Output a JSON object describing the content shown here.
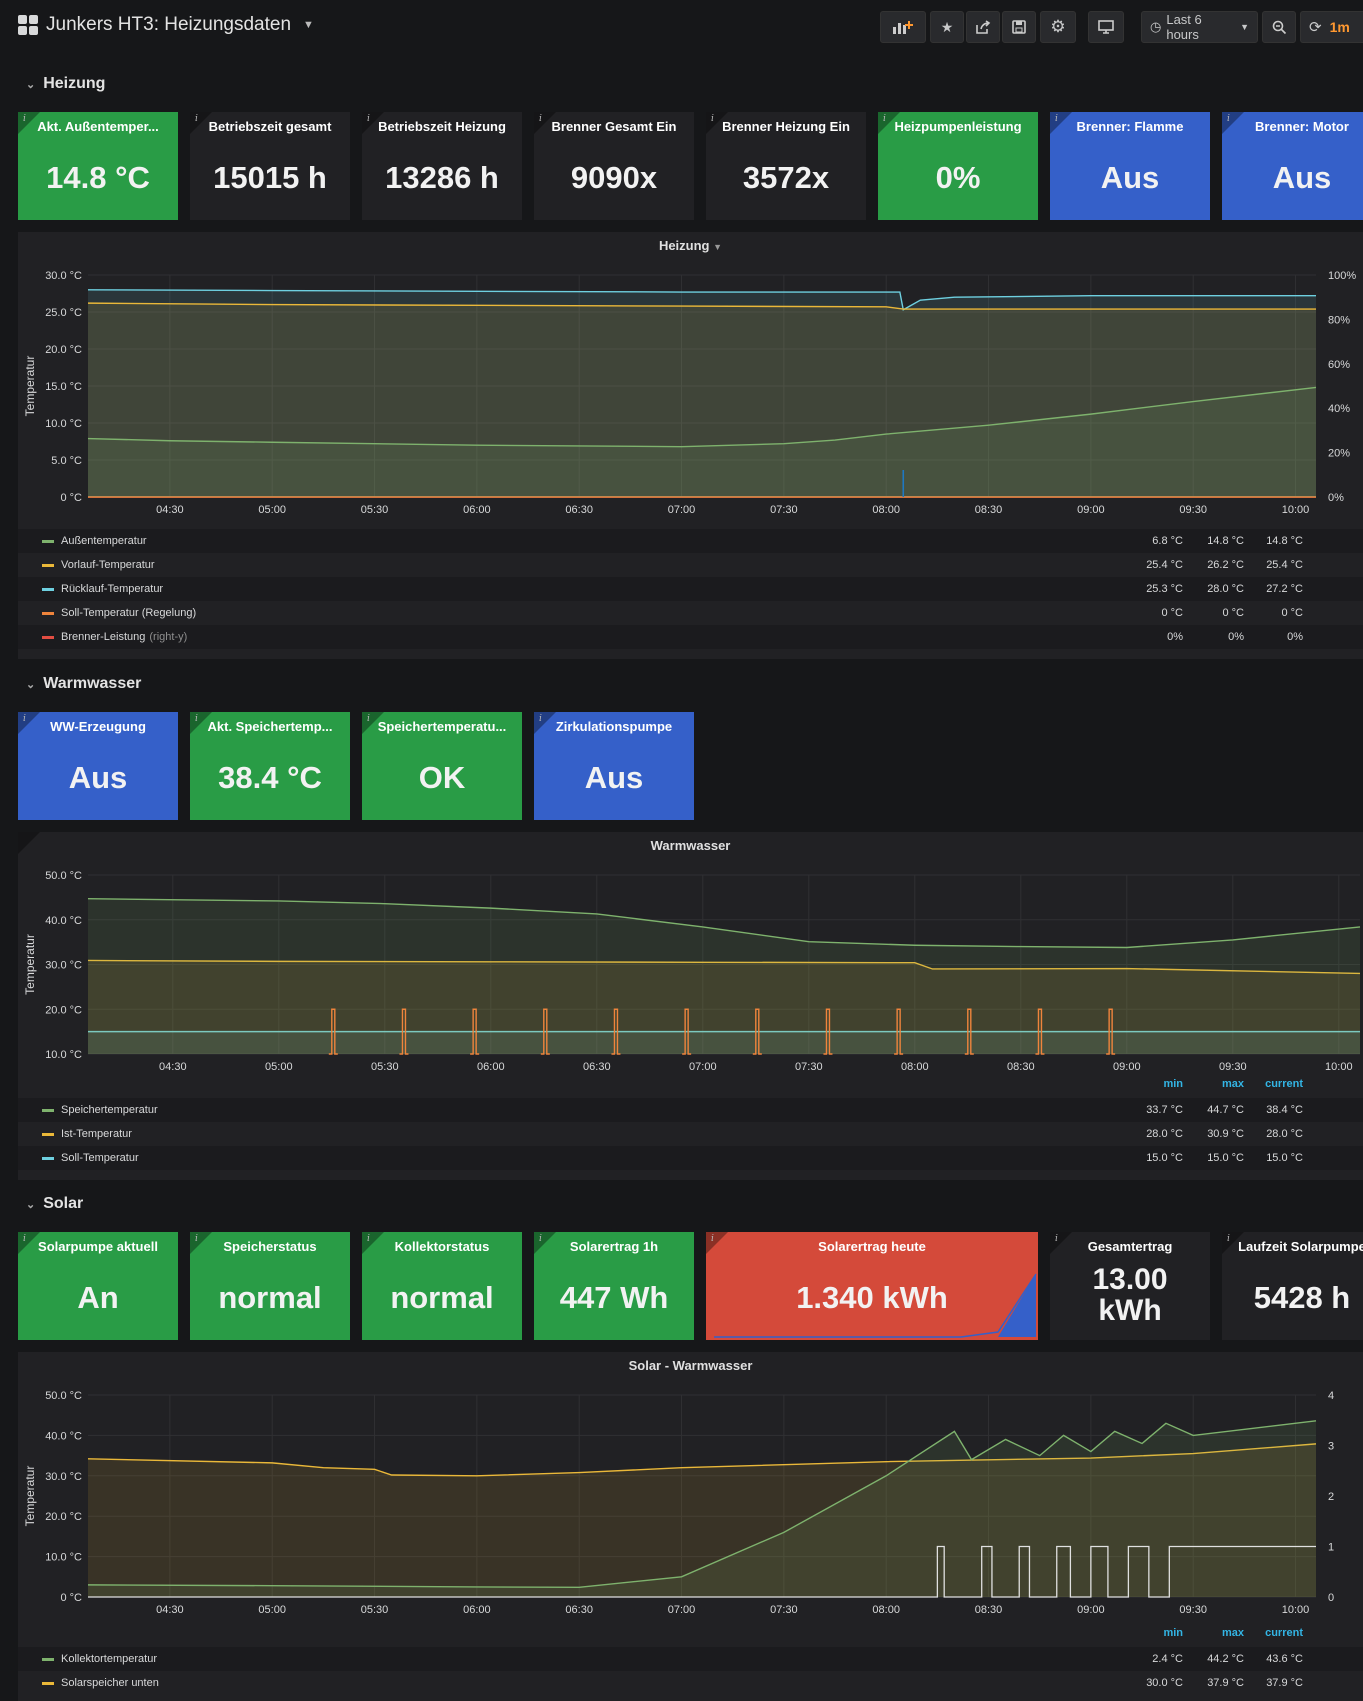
{
  "header": {
    "title": "Junkers HT3: Heizungsdaten",
    "time_range": "Last 6 hours",
    "refresh": "1m"
  },
  "rows": {
    "heizung": "Heizung",
    "warmwasser": "Warmwasser",
    "solar": "Solar"
  },
  "heizung_stats": [
    {
      "title": "Akt. Außentemper...",
      "value": "14.8 °C",
      "color": "#299c46"
    },
    {
      "title": "Betriebszeit gesamt",
      "value": "15015 h",
      "color": "#212124"
    },
    {
      "title": "Betriebszeit Heizung",
      "value": "13286 h",
      "color": "#212124"
    },
    {
      "title": "Brenner Gesamt Ein",
      "value": "9090x",
      "color": "#212124"
    },
    {
      "title": "Brenner Heizung Ein",
      "value": "3572x",
      "color": "#212124"
    },
    {
      "title": "Heizpumpenleistung",
      "value": "0%",
      "color": "#299c46"
    },
    {
      "title": "Brenner: Flamme",
      "value": "Aus",
      "color": "#3560c9"
    },
    {
      "title": "Brenner: Motor",
      "value": "Aus",
      "color": "#3560c9"
    }
  ],
  "warmwasser_stats": [
    {
      "title": "WW-Erzeugung",
      "value": "Aus",
      "color": "#3560c9"
    },
    {
      "title": "Akt. Speichertemp...",
      "value": "38.4 °C",
      "color": "#299c46"
    },
    {
      "title": "Speichertemperatu...",
      "value": "OK",
      "color": "#299c46"
    },
    {
      "title": "Zirkulationspumpe",
      "value": "Aus",
      "color": "#3560c9"
    }
  ],
  "solar_stats": [
    {
      "title": "Solarpumpe aktuell",
      "value": "An",
      "color": "#299c46"
    },
    {
      "title": "Speicherstatus",
      "value": "normal",
      "color": "#299c46"
    },
    {
      "title": "Kollektorstatus",
      "value": "normal",
      "color": "#299c46"
    },
    {
      "title": "Solarertrag 1h",
      "value": "447 Wh",
      "color": "#299c46"
    },
    {
      "title": "Solarertrag heute",
      "value": "1.340 kWh",
      "color": "#d44a3a"
    },
    {
      "title": "Gesamtertrag",
      "value": "13.00 kWh",
      "color": "#212124"
    },
    {
      "title": "Laufzeit Solarpumpe",
      "value": "5428 h",
      "color": "#212124"
    }
  ],
  "legend_headers": {
    "min": "min",
    "max": "max",
    "current": "current"
  },
  "chart_data": [
    {
      "type": "line",
      "title": "Heizung",
      "ylabel": "Temperatur",
      "ylim": [
        0,
        30
      ],
      "y_ticks": [
        "0 °C",
        "5.0 °C",
        "10.0 °C",
        "15.0 °C",
        "20.0 °C",
        "25.0 °C",
        "30.0 °C"
      ],
      "y2_ticks": [
        "0%",
        "20%",
        "40%",
        "60%",
        "80%",
        "100%"
      ],
      "x_ticks": [
        "04:30",
        "05:00",
        "05:30",
        "06:00",
        "06:30",
        "07:00",
        "07:30",
        "08:00",
        "08:30",
        "09:00",
        "09:30",
        "10:00"
      ],
      "x_range": [
        "04:06",
        "10:06"
      ],
      "series": [
        {
          "name": "Außentemperatur",
          "color": "#7eb26d",
          "min": "6.8 °C",
          "max": "14.8 °C",
          "current": "14.8 °C",
          "x": [
            "04:06",
            "04:30",
            "05:00",
            "05:30",
            "06:00",
            "06:30",
            "07:00",
            "07:30",
            "07:45",
            "08:00",
            "08:30",
            "09:00",
            "09:30",
            "10:06"
          ],
          "values": [
            7.9,
            7.6,
            7.4,
            7.2,
            7.0,
            6.9,
            6.8,
            7.2,
            7.7,
            8.5,
            9.7,
            11.2,
            12.9,
            14.8
          ]
        },
        {
          "name": "Vorlauf-Temperatur",
          "color": "#eab839",
          "min": "25.4 °C",
          "max": "26.2 °C",
          "current": "25.4 °C",
          "x": [
            "04:06",
            "05:00",
            "06:00",
            "07:00",
            "08:00",
            "08:05",
            "09:00",
            "10:06"
          ],
          "values": [
            26.2,
            26.0,
            25.9,
            25.8,
            25.7,
            25.4,
            25.4,
            25.4
          ]
        },
        {
          "name": "Rücklauf-Temperatur",
          "color": "#6ed0e0",
          "min": "25.3 °C",
          "max": "28.0 °C",
          "current": "27.2 °C",
          "x": [
            "04:06",
            "05:00",
            "06:00",
            "07:00",
            "08:00",
            "08:04",
            "08:05",
            "08:10",
            "08:20",
            "09:00",
            "10:06"
          ],
          "values": [
            28.0,
            27.9,
            27.8,
            27.7,
            27.7,
            27.7,
            25.3,
            26.6,
            27.0,
            27.2,
            27.2
          ]
        },
        {
          "name": "Soll-Temperatur (Regelung)",
          "color": "#ef843c",
          "min": "0 °C",
          "max": "0 °C",
          "current": "0 °C",
          "x": [
            "04:06",
            "10:06"
          ],
          "values": [
            0,
            0
          ]
        },
        {
          "name": "Brenner-Leistung",
          "axis": "right-y",
          "color": "#e24d42",
          "min": "0%",
          "max": "0%",
          "current": "0%",
          "x": [
            "04:06",
            "10:06"
          ],
          "values": [
            0,
            0
          ]
        }
      ]
    },
    {
      "type": "line",
      "title": "Warmwasser",
      "ylabel": "Temperatur",
      "ylim": [
        10,
        50
      ],
      "y_ticks": [
        "10.0 °C",
        "20.0 °C",
        "30.0 °C",
        "40.0 °C",
        "50.0 °C"
      ],
      "x_ticks": [
        "04:30",
        "05:00",
        "05:30",
        "06:00",
        "06:30",
        "07:00",
        "07:30",
        "08:00",
        "08:30",
        "09:00",
        "09:30",
        "10:00"
      ],
      "series": [
        {
          "name": "Speichertemperatur",
          "color": "#7eb26d",
          "min": "33.7 °C",
          "max": "44.7 °C",
          "current": "38.4 °C",
          "x": [
            "04:06",
            "05:00",
            "05:30",
            "06:00",
            "06:30",
            "07:00",
            "07:30",
            "08:00",
            "08:30",
            "09:00",
            "09:30",
            "10:06"
          ],
          "values": [
            44.7,
            44.2,
            43.6,
            42.6,
            41.3,
            38.4,
            35.1,
            34.3,
            34.0,
            33.8,
            35.5,
            38.4
          ]
        },
        {
          "name": "Ist-Temperatur",
          "color": "#eab839",
          "min": "28.0 °C",
          "max": "30.9 °C",
          "current": "28.0 °C",
          "x": [
            "04:06",
            "05:00",
            "06:00",
            "07:00",
            "08:00",
            "08:05",
            "09:00",
            "10:06"
          ],
          "values": [
            30.9,
            30.7,
            30.6,
            30.5,
            30.4,
            29.0,
            29.1,
            28.0
          ]
        },
        {
          "name": "Soll-Temperatur",
          "color": "#6ed0e0",
          "min": "15.0 °C",
          "max": "15.0 °C",
          "current": "15.0 °C",
          "x": [
            "04:06",
            "10:06"
          ],
          "values": [
            15.0,
            15.0
          ]
        }
      ]
    },
    {
      "type": "line",
      "title": "Solar - Warmwasser",
      "ylabel": "Temperatur",
      "ylim": [
        0,
        50
      ],
      "y_ticks": [
        "0 °C",
        "10.0 °C",
        "20.0 °C",
        "30.0 °C",
        "40.0 °C",
        "50.0 °C"
      ],
      "y2_ticks": [
        "0",
        "1",
        "2",
        "3",
        "4"
      ],
      "x_ticks": [
        "04:30",
        "05:00",
        "05:30",
        "06:00",
        "06:30",
        "07:00",
        "07:30",
        "08:00",
        "08:30",
        "09:00",
        "09:30",
        "10:00"
      ],
      "series": [
        {
          "name": "Kollektortemperatur",
          "color": "#7eb26d",
          "min": "2.4 °C",
          "max": "44.2 °C",
          "current": "43.6 °C",
          "x": [
            "04:06",
            "05:00",
            "06:00",
            "06:30",
            "07:00",
            "07:30",
            "08:00",
            "08:20",
            "08:25",
            "08:35",
            "08:45",
            "08:52",
            "09:00",
            "09:07",
            "09:15",
            "09:22",
            "09:30",
            "10:06"
          ],
          "values": [
            3.0,
            2.8,
            2.5,
            2.4,
            5,
            16,
            30,
            41,
            34,
            39,
            35,
            40,
            36,
            41,
            38,
            43,
            40,
            43.6
          ]
        },
        {
          "name": "Solarspeicher unten",
          "color": "#eab839",
          "min": "30.0 °C",
          "max": "37.9 °C",
          "current": "37.9 °C",
          "x": [
            "04:06",
            "05:00",
            "05:15",
            "05:30",
            "05:35",
            "06:00",
            "06:30",
            "07:00",
            "08:00",
            "09:00",
            "09:30",
            "10:06"
          ],
          "values": [
            34.2,
            33.2,
            32.0,
            31.6,
            30.2,
            30.0,
            30.8,
            32.0,
            33.5,
            34.4,
            35.5,
            37.9
          ]
        }
      ]
    }
  ]
}
